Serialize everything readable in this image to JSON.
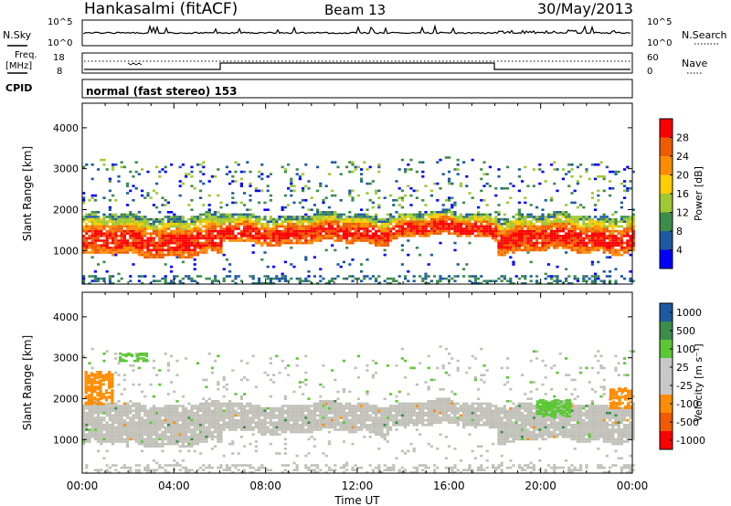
{
  "header": {
    "station": "Hankasalmi (fitACF)",
    "beam": "Beam 13",
    "date": "30/May/2013"
  },
  "top_panels": {
    "nsky_label": "N.Sky",
    "nsky_ticks": [
      "10^5",
      "10^0"
    ],
    "nsearch_label": "N.Search",
    "nsearch_ticks": [
      "10^5",
      "10^0"
    ],
    "freq_label": "Freq.",
    "freq_unit": "[MHz]",
    "freq_ticks": [
      "18",
      "8"
    ],
    "nave_label": "Nave",
    "nave_ticks": [
      "60",
      "0"
    ],
    "cpid_label": "CPID",
    "cpid_value": "normal (fast stereo) 153"
  },
  "chart_data": [
    {
      "type": "heatmap",
      "name": "power-panel",
      "xlabel": "",
      "ylabel": "Slant Range [km]",
      "x_ticks": [
        "00:00",
        "04:00",
        "08:00",
        "12:00",
        "16:00",
        "20:00",
        "00:00"
      ],
      "x_hours": [
        0,
        24
      ],
      "y_ticks": [
        4000,
        3000,
        2000,
        1000
      ],
      "ylim": [
        180,
        4600
      ],
      "colorbar": {
        "label": "Power [dB]",
        "ticks": [
          "28",
          "24",
          "20",
          "16",
          "12",
          "8",
          "4"
        ],
        "colors": [
          "#ff0000",
          "#f05a00",
          "#ff8c00",
          "#ffcc00",
          "#a0c832",
          "#3c8c4a",
          "#1e5aa0",
          "#0000ff"
        ]
      },
      "bands": [
        {
          "start_h": 0,
          "end_h": 6,
          "lower_km": 900,
          "upper_km": 1900,
          "intensity": "high"
        },
        {
          "start_h": 6,
          "end_h": 13.3,
          "lower_km": 1200,
          "upper_km": 1900,
          "intensity": "medium"
        },
        {
          "start_h": 13.3,
          "end_h": 18,
          "lower_km": 1350,
          "upper_km": 1950,
          "intensity": "medium"
        },
        {
          "start_h": 18,
          "end_h": 24,
          "lower_km": 1000,
          "upper_km": 1900,
          "intensity": "high"
        }
      ]
    },
    {
      "type": "heatmap",
      "name": "velocity-panel",
      "xlabel": "Time UT",
      "ylabel": "Slant Range [km]",
      "x_ticks": [
        "00:00",
        "04:00",
        "08:00",
        "12:00",
        "16:00",
        "20:00",
        "00:00"
      ],
      "x_hours": [
        0,
        24
      ],
      "y_ticks": [
        4000,
        3000,
        2000,
        1000
      ],
      "ylim": [
        180,
        4600
      ],
      "colorbar": {
        "label": "Velocity [m s⁻¹]",
        "ticks": [
          "1000",
          "500",
          "100",
          "25",
          "-25",
          "-100",
          "-500",
          "-1000"
        ],
        "colors": [
          "#1e5aa0",
          "#3c8c4a",
          "#5ac832",
          "#c8c8c8",
          "#c8c8c8",
          "#ff8c00",
          "#f05a00",
          "#ff0000"
        ]
      },
      "ground_scatter_color": "#c0c0b8"
    }
  ]
}
